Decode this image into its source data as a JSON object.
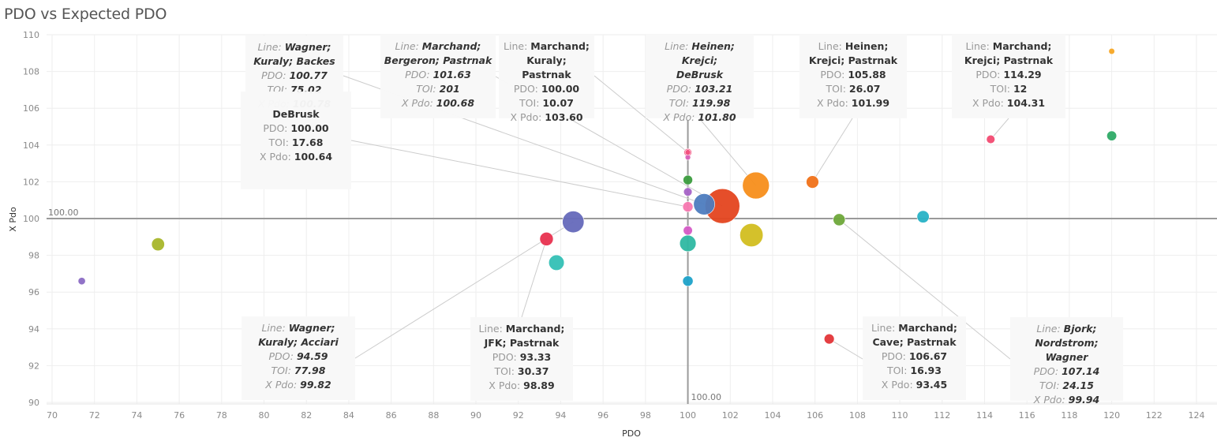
{
  "title": "PDO vs Expected PDO",
  "chart_data": {
    "type": "scatter",
    "title": "PDO vs Expected PDO",
    "xlabel": "PDO",
    "ylabel": "X Pdo",
    "xlim": [
      69.7,
      125.3
    ],
    "ylim": [
      89.6,
      110.3
    ],
    "xticks": [
      70,
      72,
      74,
      76,
      78,
      80,
      82,
      84,
      86,
      88,
      90,
      92,
      94,
      96,
      98,
      100,
      102,
      104,
      106,
      108,
      110,
      112,
      114,
      116,
      118,
      120,
      122,
      124
    ],
    "yticks": [
      90,
      92,
      94,
      96,
      98,
      100,
      102,
      104,
      106,
      108,
      110
    ],
    "grid": true,
    "reference_lines": [
      {
        "axis": "x",
        "value": 100,
        "label": "100.00"
      },
      {
        "axis": "y",
        "value": 100,
        "label": "100.00"
      }
    ],
    "size_field": "TOI",
    "points": [
      {
        "x": 71.4,
        "y": 96.6,
        "toi": 9,
        "color": "#8b6cc4"
      },
      {
        "x": 75.0,
        "y": 98.6,
        "toi": 28,
        "color": "#a8b62a"
      },
      {
        "x": 94.59,
        "y": 99.82,
        "toi": 77.98,
        "color": "#6569bb",
        "line": "Wagner; Kuraly; Acciari"
      },
      {
        "x": 93.33,
        "y": 98.89,
        "toi": 30.37,
        "color": "#e8324f",
        "line": "Marchand; JFK; Pastrnak"
      },
      {
        "x": 93.8,
        "y": 97.6,
        "toi": 40,
        "color": "#34c0b5"
      },
      {
        "x": 100.0,
        "y": 103.6,
        "toi": 3,
        "color": "#f25280"
      },
      {
        "x": 100.0,
        "y": 103.33,
        "toi": 5,
        "color": "#d860b8"
      },
      {
        "x": 100.0,
        "y": 102.1,
        "toi": 15,
        "color": "#3b9c3e"
      },
      {
        "x": 100.0,
        "y": 101.45,
        "toi": 12,
        "color": "#a763c7"
      },
      {
        "x": 100.0,
        "y": 100.64,
        "toi": 17.68,
        "color": "#f778b0",
        "line": "?; Nordstrom; DeBrusk"
      },
      {
        "x": 100.77,
        "y": 100.78,
        "toi": 75.02,
        "color": "#4d7cbf",
        "line": "Wagner; Kuraly; Backes"
      },
      {
        "x": 101.63,
        "y": 100.68,
        "toi": 201,
        "color": "#e4451f",
        "line": "Marchand; Bergeron; Pastrnak"
      },
      {
        "x": 103.21,
        "y": 101.8,
        "toi": 119.98,
        "color": "#f78e1b",
        "line": "Heinen; Krejci; DeBrusk"
      },
      {
        "x": 100.0,
        "y": 99.35,
        "toi": 14,
        "color": "#d55bc6"
      },
      {
        "x": 100.0,
        "y": 98.65,
        "toi": 45,
        "color": "#2eb8a2"
      },
      {
        "x": 100.0,
        "y": 96.6,
        "toi": 18,
        "color": "#1ea2c9"
      },
      {
        "x": 103.0,
        "y": 99.1,
        "toi": 90,
        "color": "#d2be20"
      },
      {
        "x": 105.88,
        "y": 101.99,
        "toi": 26.07,
        "color": "#f07118",
        "line": "Heinen; Krejci; Pastrnak"
      },
      {
        "x": 107.14,
        "y": 99.94,
        "toi": 24.15,
        "color": "#6ea83a",
        "line": "Bjork; Nordstrom; Wagner"
      },
      {
        "x": 111.1,
        "y": 100.1,
        "toi": 25,
        "color": "#27b2c6"
      },
      {
        "x": 106.67,
        "y": 93.45,
        "toi": 16.93,
        "color": "#e33538",
        "line": "Marchand; Cave; Pastrnak"
      },
      {
        "x": 114.29,
        "y": 104.31,
        "toi": 12,
        "color": "#f24a71",
        "line": "Marchand; Krejci; Pastrnak"
      },
      {
        "x": 120.0,
        "y": 104.5,
        "toi": 16,
        "color": "#2eaa66"
      },
      {
        "x": 120.0,
        "y": 109.1,
        "toi": 6,
        "color": "#f7a624"
      },
      {
        "x": 100.0,
        "y": 103.6,
        "toi": 10.07,
        "color": "#f25280",
        "line": "Marchand; Kuraly; Pastrnak"
      }
    ]
  },
  "annotations": [
    {
      "id": "wagner-kuraly-backes",
      "italic": true,
      "line1": "Wagner;",
      "line2": "Kuraly; Backes",
      "pdo": "100.77",
      "toi": "75.02",
      "xpdo": "100.78"
    },
    {
      "id": "nordstrom-debrusk",
      "italic": false,
      "line1": "Nordstrom;",
      "line2": "DeBrusk",
      "pdo": "100.00",
      "toi": "17.68",
      "xpdo": "100.64"
    },
    {
      "id": "marchand-bergeron-pastrnak",
      "italic": true,
      "line1": "Marchand;",
      "line2": "Bergeron; Pastrnak",
      "pdo": "101.63",
      "toi": "201",
      "xpdo": "100.68"
    },
    {
      "id": "marchand-kuraly-pastrnak",
      "italic": false,
      "line1": "Marchand;",
      "line2": "Kuraly; Pastrnak",
      "pdo": "100.00",
      "toi": "10.07",
      "xpdo": "103.60"
    },
    {
      "id": "heinen-krejci-debrusk",
      "italic": true,
      "line1": "Heinen; Krejci;",
      "line2": "DeBrusk",
      "pdo": "103.21",
      "toi": "119.98",
      "xpdo": "101.80"
    },
    {
      "id": "heinen-krejci-pastrnak",
      "italic": false,
      "line1": "Heinen;",
      "line2": "Krejci; Pastrnak",
      "pdo": "105.88",
      "toi": "26.07",
      "xpdo": "101.99"
    },
    {
      "id": "marchand-krejci-pastrnak",
      "italic": false,
      "line1": "Marchand;",
      "line2": "Krejci; Pastrnak",
      "pdo": "114.29",
      "toi": "12",
      "xpdo": "104.31"
    },
    {
      "id": "wagner-kuraly-acciari",
      "italic": true,
      "line1": "Wagner;",
      "line2": "Kuraly; Acciari",
      "pdo": "94.59",
      "toi": "77.98",
      "xpdo": "99.82"
    },
    {
      "id": "marchand-jfk-pastrnak",
      "italic": false,
      "line1": "Marchand;",
      "line2": "JFK; Pastrnak",
      "pdo": "93.33",
      "toi": "30.37",
      "xpdo": "98.89"
    },
    {
      "id": "marchand-cave-pastrnak",
      "italic": false,
      "line1": "Marchand;",
      "line2": "Cave; Pastrnak",
      "pdo": "106.67",
      "toi": "16.93",
      "xpdo": "93.45"
    },
    {
      "id": "bjork-nordstrom-wagner",
      "italic": true,
      "line1": "Bjork;",
      "line2": "Nordstrom; Wagner",
      "pdo": "107.14",
      "toi": "24.15",
      "xpdo": "99.94"
    }
  ],
  "labels": {
    "line": "Line:",
    "pdo": "PDO:",
    "toi": "TOI:",
    "xpdo": "X Pdo:"
  }
}
